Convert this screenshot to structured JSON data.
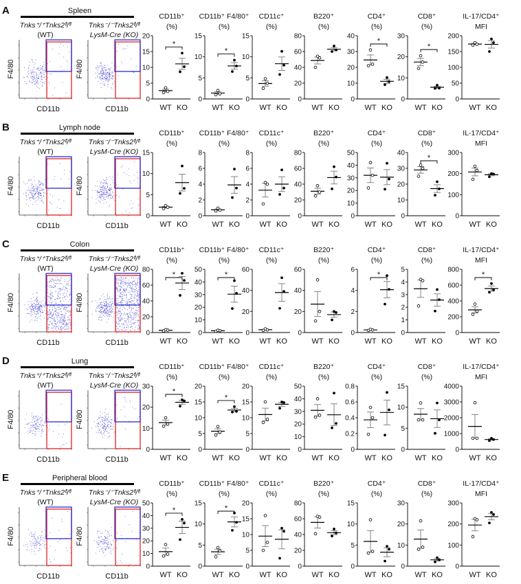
{
  "figure": {
    "x_categories": [
      "WT",
      "KO"
    ],
    "significance_marker": "*",
    "flow": {
      "wt_label_line1": "Tnks⁺/⁺Tnks2ᶠˡ/ᶠˡ",
      "wt_label_line2": "(WT)",
      "ko_label_line1": "Tnks⁻/⁻Tnks2ᶠˡ/ᶠˡ",
      "ko_label_line2": "LysM-Cre (KO)",
      "y_axis": "F4/80",
      "x_axis": "CD11b"
    },
    "colors": {
      "wt_gate": "#2b2bd0",
      "ko_gate": "#e02020",
      "dots": "#5a5ad8"
    }
  },
  "chart_data": [
    {
      "panel": "A",
      "tissue": "Spleen",
      "type": "scatter",
      "charts": [
        {
          "title": [
            "CD11b⁺",
            "(%)"
          ],
          "ylim": [
            0,
            20
          ],
          "yticks": [
            0,
            5,
            10,
            15,
            20
          ],
          "WT": [
            2.0,
            2.4,
            3.5
          ],
          "KO": [
            8.6,
            10.2,
            14.5
          ],
          "significant": true
        },
        {
          "title": [
            "CD11b⁺ F4/80⁺",
            "(%)"
          ],
          "ylim": [
            0,
            15
          ],
          "yticks": [
            0,
            5,
            10,
            15
          ],
          "WT": [
            1.0,
            1.2,
            2.0
          ],
          "KO": [
            6.5,
            7.8,
            9.2
          ],
          "significant": true
        },
        {
          "title": [
            "CD11c⁺",
            "(%)"
          ],
          "ylim": [
            0,
            15
          ],
          "yticks": [
            0,
            5,
            10,
            15
          ],
          "WT": [
            2.5,
            3.7,
            4.8
          ],
          "KO": [
            5.8,
            8.0,
            11.3
          ],
          "significant": false
        },
        {
          "title": [
            "B220⁺",
            "(%)"
          ],
          "ylim": [
            0,
            80
          ],
          "yticks": [
            0,
            20,
            40,
            60,
            80
          ],
          "WT": [
            40,
            52,
            54
          ],
          "KO": [
            60,
            62,
            67
          ],
          "significant": false
        },
        {
          "title": [
            "CD4⁺",
            "(%)"
          ],
          "ylim": [
            0,
            40
          ],
          "yticks": [
            0,
            10,
            20,
            30,
            40
          ],
          "WT": [
            21,
            22,
            31
          ],
          "KO": [
            9,
            11,
            13.5
          ],
          "significant": true
        },
        {
          "title": [
            "CD8⁺",
            "(%)"
          ],
          "ylim": [
            0,
            30
          ],
          "yticks": [
            0,
            10,
            20,
            30
          ],
          "WT": [
            14.5,
            17.5,
            20.5
          ],
          "KO": [
            5,
            5.1,
            6.5
          ],
          "significant": true
        },
        {
          "title": [
            "IL-17/CD4⁺",
            "MFI"
          ],
          "ylim": [
            0,
            200
          ],
          "yticks": [
            0,
            50,
            100,
            150,
            200
          ],
          "WT": [
            170,
            173,
            178
          ],
          "KO": [
            150,
            178,
            190
          ],
          "significant": false
        }
      ]
    },
    {
      "panel": "B",
      "tissue": "Lymph node",
      "type": "scatter",
      "charts": [
        {
          "title": [
            "CD11b⁺",
            "(%)"
          ],
          "ylim": [
            0,
            15
          ],
          "yticks": [
            0,
            5,
            10,
            15
          ],
          "WT": [
            1.7,
            2.0,
            2.4
          ],
          "KO": [
            5.3,
            6.5,
            11.8
          ],
          "significant": false
        },
        {
          "title": [
            "CD11b⁺ F4/80⁺",
            "(%)"
          ],
          "ylim": [
            0,
            8
          ],
          "yticks": [
            0,
            2,
            4,
            6,
            8
          ],
          "WT": [
            0.6,
            0.7,
            0.95
          ],
          "KO": [
            2.3,
            3.5,
            5.9
          ],
          "significant": false
        },
        {
          "title": [
            "CD11c⁺",
            "(%)"
          ],
          "ylim": [
            0,
            8
          ],
          "yticks": [
            0,
            2,
            4,
            6,
            8
          ],
          "WT": [
            1.5,
            4.0,
            4.2
          ],
          "KO": [
            2.7,
            3.5,
            5.8
          ],
          "significant": false
        },
        {
          "title": [
            "B220⁺",
            "(%)"
          ],
          "ylim": [
            0,
            80
          ],
          "yticks": [
            0,
            20,
            40,
            60,
            80
          ],
          "WT": [
            25,
            30,
            38
          ],
          "KO": [
            34,
            49,
            62
          ],
          "significant": false
        },
        {
          "title": [
            "CD4⁺",
            "(%)"
          ],
          "ylim": [
            0,
            50
          ],
          "yticks": [
            0,
            10,
            20,
            30,
            40,
            50
          ],
          "WT": [
            22,
            32,
            42
          ],
          "KO": [
            21,
            29,
            41.5
          ],
          "significant": false
        },
        {
          "title": [
            "CD8⁺",
            "(%)"
          ],
          "ylim": [
            0,
            40
          ],
          "yticks": [
            0,
            10,
            20,
            30,
            40
          ],
          "WT": [
            25,
            30,
            32
          ],
          "KO": [
            13,
            17,
            21.5
          ],
          "significant": true
        },
        {
          "title": [
            "IL-17/CD4⁺",
            "MFI"
          ],
          "ylim": [
            0,
            300
          ],
          "yticks": [
            0,
            100,
            200,
            300
          ],
          "WT": [
            173,
            215,
            235
          ],
          "KO": [
            185,
            198,
            200
          ],
          "significant": false
        }
      ]
    },
    {
      "panel": "C",
      "tissue": "Colon",
      "type": "scatter",
      "charts": [
        {
          "title": [
            "CD11b⁺",
            "(%)"
          ],
          "ylim": [
            0,
            80
          ],
          "yticks": [
            0,
            20,
            40,
            60,
            80
          ],
          "WT": [
            2,
            3,
            3.5
          ],
          "KO": [
            47,
            66,
            75
          ],
          "significant": true
        },
        {
          "title": [
            "CD11b⁺ F4/80⁺",
            "(%)"
          ],
          "ylim": [
            0,
            50
          ],
          "yticks": [
            0,
            10,
            20,
            30,
            40,
            50
          ],
          "WT": [
            1,
            1.5,
            1.8
          ],
          "KO": [
            19,
            31,
            41
          ],
          "significant": true
        },
        {
          "title": [
            "CD11c⁺",
            "(%)"
          ],
          "ylim": [
            0,
            60
          ],
          "yticks": [
            0,
            20,
            40,
            60
          ],
          "WT": [
            2,
            2.5,
            3.5
          ],
          "KO": [
            23,
            39,
            52
          ],
          "significant": false
        },
        {
          "title": [
            "B220⁺",
            "(%)"
          ],
          "ylim": [
            0,
            60
          ],
          "yticks": [
            0,
            20,
            40,
            60
          ],
          "WT": [
            11,
            20,
            50
          ],
          "KO": [
            12,
            19,
            20
          ],
          "significant": false
        },
        {
          "title": [
            "CD4⁺",
            "(%)"
          ],
          "ylim": [
            0,
            6
          ],
          "yticks": [
            0,
            2,
            4,
            6
          ],
          "WT": [
            0.2,
            0.25,
            0.3
          ],
          "KO": [
            2.7,
            4.1,
            5.4
          ],
          "significant": true
        },
        {
          "title": [
            "CD8⁺",
            "(%)"
          ],
          "ylim": [
            0,
            5
          ],
          "yticks": [
            0,
            1,
            2,
            3,
            4,
            5
          ],
          "WT": [
            2.1,
            4.1,
            4.2
          ],
          "KO": [
            1.7,
            2.6,
            3.4
          ],
          "significant": false
        },
        {
          "title": [
            "IL-17/CD4⁺",
            "MFI"
          ],
          "ylim": [
            0,
            800
          ],
          "yticks": [
            0,
            200,
            400,
            600,
            800
          ],
          "WT": [
            230,
            270,
            360
          ],
          "KO": [
            510,
            540,
            620
          ],
          "significant": true
        }
      ]
    },
    {
      "panel": "D",
      "tissue": "Lung",
      "type": "scatter",
      "charts": [
        {
          "title": [
            "CD11b⁺",
            "(%)"
          ],
          "ylim": [
            0,
            30
          ],
          "yticks": [
            0,
            10,
            20,
            30
          ],
          "WT": [
            11,
            12,
            15
          ],
          "KO": [
            20.5,
            23,
            23.5
          ],
          "significant": true
        },
        {
          "title": [
            "CD11b⁺ F4/80⁺",
            "(%)"
          ],
          "ylim": [
            0,
            20
          ],
          "yticks": [
            0,
            5,
            10,
            15,
            20
          ],
          "WT": [
            4.5,
            5.5,
            7.2
          ],
          "KO": [
            11.8,
            12,
            13.5
          ],
          "significant": true
        },
        {
          "title": [
            "CD11c⁺",
            "(%)"
          ],
          "ylim": [
            0,
            20
          ],
          "yticks": [
            0,
            5,
            10,
            15,
            20
          ],
          "WT": [
            8.5,
            9.5,
            15
          ],
          "KO": [
            13,
            14.8,
            15
          ],
          "significant": false
        },
        {
          "title": [
            "B220⁺",
            "(%)"
          ],
          "ylim": [
            0,
            50
          ],
          "yticks": [
            0,
            10,
            20,
            30,
            40,
            50
          ],
          "WT": [
            25.5,
            27,
            40
          ],
          "KO": [
            17,
            20.5,
            44.5
          ],
          "significant": false
        },
        {
          "title": [
            "CD4⁺",
            "(%)"
          ],
          "ylim": [
            0,
            0.8
          ],
          "yticks": [
            0,
            0.2,
            0.4,
            0.6,
            0.8
          ],
          "WT": [
            0.19,
            0.4,
            0.53
          ],
          "KO": [
            0.18,
            0.5,
            0.72
          ],
          "significant": false
        },
        {
          "title": [
            "CD8⁺",
            "(%)"
          ],
          "ylim": [
            0,
            15
          ],
          "yticks": [
            0,
            5,
            10,
            15
          ],
          "WT": [
            7,
            7,
            11
          ],
          "KO": [
            3.8,
            7,
            11
          ],
          "significant": false
        },
        {
          "title": [
            "IL-17/CD4⁺",
            "MFI"
          ],
          "ylim": [
            0,
            4000
          ],
          "yticks": [
            0,
            1000,
            2000,
            3000,
            4000
          ],
          "WT": [
            700,
            700,
            2950
          ],
          "KO": [
            550,
            620,
            700
          ],
          "significant": false
        }
      ]
    },
    {
      "panel": "E",
      "tissue": "Peripheral blood",
      "type": "scatter",
      "charts": [
        {
          "title": [
            "CD11b⁺",
            "(%)"
          ],
          "ylim": [
            0,
            50
          ],
          "yticks": [
            0,
            10,
            20,
            30,
            40,
            50
          ],
          "WT": [
            8,
            9.5,
            17
          ],
          "KO": [
            21,
            34,
            37
          ],
          "significant": true
        },
        {
          "title": [
            "CD11b⁺ F4/80⁺",
            "(%)"
          ],
          "ylim": [
            0,
            15
          ],
          "yticks": [
            0,
            5,
            10,
            15
          ],
          "WT": [
            2.2,
            3.6,
            4.4
          ],
          "KO": [
            8.5,
            10.4,
            12.6
          ],
          "significant": true
        },
        {
          "title": [
            "CD11c⁺",
            "(%)"
          ],
          "ylim": [
            0,
            20
          ],
          "yticks": [
            0,
            5,
            10,
            15,
            20
          ],
          "WT": [
            5,
            7.5,
            16
          ],
          "KO": [
            2.5,
            11,
            12
          ],
          "significant": false
        },
        {
          "title": [
            "B220⁺",
            "(%)"
          ],
          "ylim": [
            0,
            80
          ],
          "yticks": [
            0,
            20,
            40,
            60,
            80
          ],
          "WT": [
            41,
            62,
            63
          ],
          "KO": [
            38,
            42,
            47
          ],
          "significant": false
        },
        {
          "title": [
            "CD4⁺",
            "(%)"
          ],
          "ylim": [
            0,
            15
          ],
          "yticks": [
            0,
            5,
            10,
            15
          ],
          "WT": [
            3.1,
            3.5,
            11
          ],
          "KO": [
            1.2,
            4,
            4.7
          ],
          "significant": false
        },
        {
          "title": [
            "CD8⁺",
            "(%)"
          ],
          "ylim": [
            0,
            30
          ],
          "yticks": [
            0,
            10,
            20,
            30
          ],
          "WT": [
            8,
            9,
            21.5
          ],
          "KO": [
            2,
            3,
            4
          ],
          "significant": false
        },
        {
          "title": [
            "IL-17/CD4⁺",
            "MFI"
          ],
          "ylim": [
            0,
            300
          ],
          "yticks": [
            0,
            100,
            200,
            300
          ],
          "WT": [
            140,
            220,
            225
          ],
          "KO": [
            205,
            245,
            255
          ],
          "significant": false
        }
      ]
    }
  ]
}
